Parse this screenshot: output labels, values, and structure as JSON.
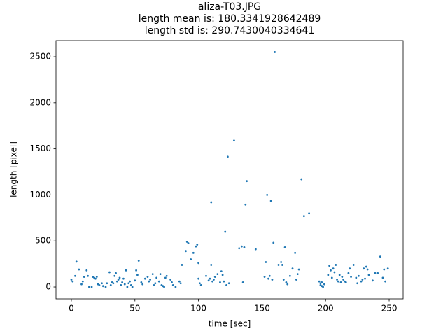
{
  "chart_data": {
    "type": "scatter",
    "title": [
      "aliza-T03.JPG",
      "length mean is: 180.3341928642489",
      "length std is: 290.7430040334641"
    ],
    "xlabel": "time [sec]",
    "ylabel": "length [pixel]",
    "color": "#1f77b4",
    "xlim": [
      -12.1,
      261
    ],
    "ylim": [
      -129,
      2675
    ],
    "xticks": [
      0,
      50,
      100,
      150,
      200,
      250
    ],
    "yticks": [
      0,
      500,
      1000,
      1500,
      2000,
      2500
    ],
    "x": [
      0,
      1,
      3,
      4,
      6,
      8,
      9,
      10,
      12,
      13,
      14,
      16,
      17,
      18,
      19,
      20,
      21,
      22,
      24,
      25,
      27,
      28,
      30,
      31,
      32,
      33,
      34,
      35,
      36,
      37,
      38,
      39,
      40,
      41,
      42,
      43,
      44,
      45,
      46,
      47,
      48,
      50,
      51,
      52,
      53,
      55,
      56,
      58,
      60,
      61,
      62,
      64,
      65,
      66,
      67,
      69,
      70,
      71,
      72,
      73,
      74,
      75,
      78,
      79,
      80,
      82,
      85,
      86,
      87,
      90,
      91,
      92,
      94,
      96,
      98,
      99,
      100,
      100,
      101,
      102,
      106,
      108,
      109,
      110,
      110,
      111,
      112,
      113,
      115,
      117,
      118,
      119,
      120,
      121,
      122,
      123,
      124,
      128,
      132,
      134,
      135,
      136,
      137,
      138,
      145,
      152,
      153,
      154,
      155,
      156,
      157,
      158,
      159,
      160,
      163,
      165,
      166,
      167,
      168,
      169,
      170,
      172,
      174,
      176,
      177,
      178,
      179,
      181,
      183,
      187,
      195,
      196,
      196,
      197,
      197,
      198,
      199,
      202,
      203,
      204,
      205,
      206,
      207,
      208,
      209,
      210,
      211,
      212,
      213,
      214,
      215,
      216,
      218,
      219,
      220,
      222,
      224,
      225,
      226,
      228,
      229,
      230,
      231,
      232,
      233,
      234,
      237,
      239,
      241,
      243,
      245,
      246,
      247,
      249
    ],
    "values": [
      80,
      60,
      120,
      275,
      190,
      30,
      60,
      110,
      180,
      120,
      0,
      0,
      110,
      100,
      90,
      110,
      30,
      20,
      40,
      10,
      0,
      40,
      160,
      20,
      50,
      40,
      120,
      150,
      60,
      80,
      100,
      20,
      50,
      90,
      30,
      180,
      0,
      40,
      60,
      20,
      0,
      70,
      180,
      130,
      285,
      50,
      30,
      90,
      110,
      60,
      80,
      140,
      20,
      40,
      100,
      60,
      140,
      20,
      10,
      0,
      100,
      120,
      80,
      50,
      20,
      0,
      60,
      40,
      240,
      390,
      490,
      475,
      300,
      370,
      440,
      460,
      260,
      90,
      40,
      20,
      120,
      70,
      90,
      920,
      240,
      60,
      80,
      110,
      140,
      50,
      170,
      130,
      60,
      600,
      20,
      1415,
      40,
      1590,
      420,
      440,
      50,
      430,
      895,
      1150,
      410,
      110,
      270,
      1000,
      90,
      120,
      935,
      80,
      480,
      2550,
      240,
      270,
      240,
      80,
      430,
      50,
      30,
      120,
      200,
      370,
      80,
      140,
      190,
      1170,
      770,
      800,
      60,
      40,
      20,
      10,
      50,
      0,
      30,
      130,
      230,
      180,
      100,
      200,
      160,
      240,
      80,
      60,
      130,
      50,
      110,
      80,
      60,
      50,
      150,
      200,
      110,
      240,
      100,
      40,
      120,
      60,
      80,
      200,
      90,
      220,
      190,
      130,
      70,
      150,
      150,
      330,
      100,
      190,
      60,
      200
    ]
  }
}
